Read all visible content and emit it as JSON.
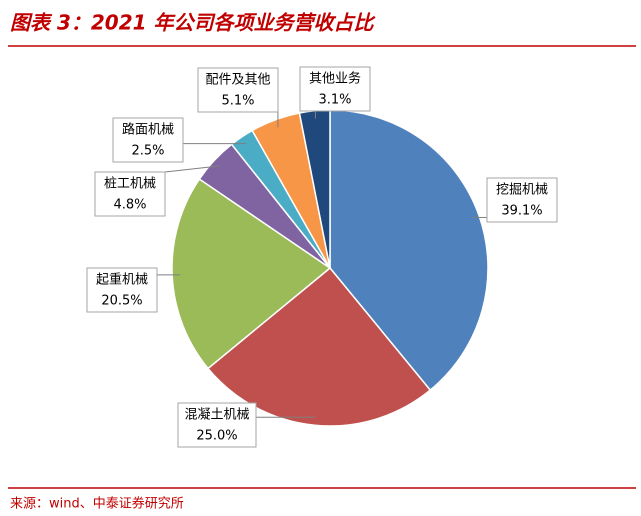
{
  "chart_data": {
    "type": "pie",
    "title": "图表 3：2021 年公司各项业务营收占比",
    "source": "来源：wind、中泰证券研究所",
    "categories": [
      "挖掘机械",
      "混凝土机械",
      "起重机械",
      "桩工机械",
      "路面机械",
      "配件及其他",
      "其他业务"
    ],
    "values": [
      39.1,
      25.0,
      20.5,
      4.8,
      2.5,
      5.1,
      3.1
    ],
    "value_labels": [
      "39.1%",
      "25.0%",
      "20.5%",
      "4.8%",
      "2.5%",
      "5.1%",
      "3.1%"
    ],
    "colors": [
      "#4f81bd",
      "#c0504d",
      "#9bbb59",
      "#8064a2",
      "#4bacc6",
      "#f79646",
      "#1f497d"
    ]
  }
}
